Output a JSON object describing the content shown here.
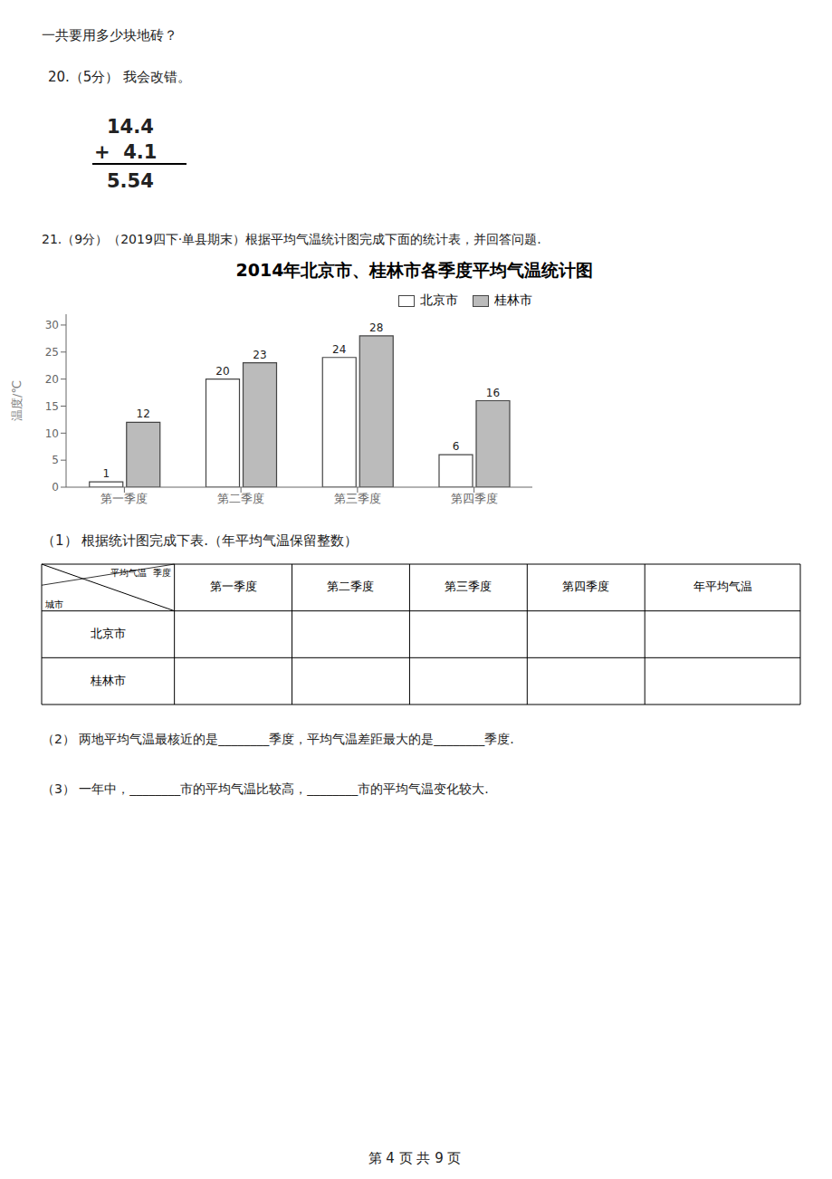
{
  "chart_data": {
    "type": "bar",
    "title": "2014年北京市、桂林市各季度平均气温统计图",
    "categories": [
      "第一季度",
      "第二季度",
      "第三季度",
      "第四季度"
    ],
    "series": [
      {
        "name": "北京市",
        "color": "#ffffff",
        "values": [
          1,
          20,
          24,
          6
        ]
      },
      {
        "name": "桂林市",
        "color": "#bbbbbb",
        "values": [
          12,
          23,
          28,
          16
        ]
      }
    ],
    "y_label": "温度/℃",
    "ylim": [
      0,
      32
    ],
    "yticks": [
      0,
      5,
      10,
      15,
      20,
      25,
      30
    ],
    "grid": false,
    "legend": "upper right",
    "data_labels": true,
    "annotations": [
      "一共要用多少块地砖？",
      "20.（5分） 我会改错。",
      "14.4",
      "+  4.1",
      "5.54",
      "21.（9分）（2019四下·单县期末）根据平均气温统计图完成下面的统计表，并回答问题.",
      "（1） 根据统计图完成下表.（年平均气温保留整数）",
      "平均气温  季度",
      "城市",
      "第一季度",
      "第二季度",
      "第三季度",
      "第四季度",
      "年平均气温",
      "北京市",
      "桂林市",
      "（2） 两地平均气温最核近的是________季度，平均气温差距最大的是________季度.",
      "（3） 一年中，________市的平均气温比较高，________市的平均气温变化较大.",
      "第 4 页 共 9 页"
    ]
  }
}
